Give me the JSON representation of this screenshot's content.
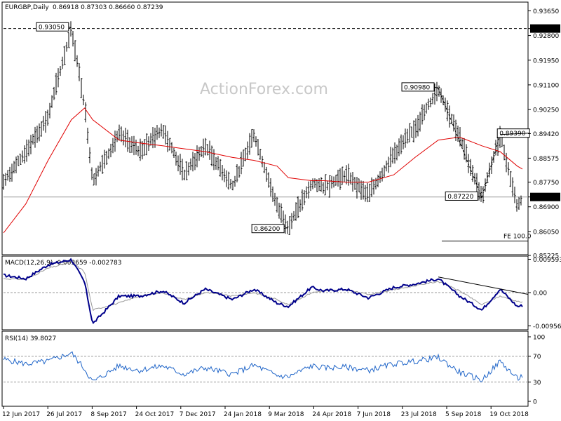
{
  "chart_data": [
    {
      "type": "candlestick",
      "title": "EURGBP,Daily",
      "ohlc_values": "0.86918 0.87303 0.86660 0.87239",
      "watermark": "ActionForex.com",
      "ylim": [
        0.8525,
        0.9395
      ],
      "y_ticks": [
        "0.93650",
        "0.93040",
        "0.92800",
        "0.91950",
        "0.91100",
        "0.90250",
        "0.89420",
        "0.88575",
        "0.87750",
        "0.87239",
        "0.86900",
        "0.86050",
        "0.85225"
      ],
      "y_tick_values": [
        0.9365,
        0.9304,
        0.928,
        0.9195,
        0.911,
        0.9025,
        0.8942,
        0.88575,
        0.8775,
        0.87239,
        0.869,
        0.8605,
        0.85225
      ],
      "highlight_prices": {
        "current": "0.87239",
        "level": "0.93040"
      },
      "current_price": 0.87239,
      "dashed_level": 0.9304,
      "x_ticks": [
        "12 Jun 2017",
        "26 Jul 2017",
        "8 Sep 2017",
        "24 Oct 2017",
        "7 Dec 2017",
        "24 Jan 2018",
        "9 Mar 2018",
        "24 Apr 2018",
        "7 Jun 2018",
        "23 Jul 2018",
        "5 Sep 2018",
        "19 Oct 2018"
      ],
      "pivot_labels": [
        {
          "text": "0.93050",
          "date": "2017-08-18",
          "value": 0.9305
        },
        {
          "text": "0.86200",
          "date": "2018-03-20",
          "value": 0.862
        },
        {
          "text": "0.90980",
          "date": "2018-08-15",
          "value": 0.9098
        },
        {
          "text": "0.89390",
          "date": "2018-10-15",
          "value": 0.8939
        },
        {
          "text": "0.87220",
          "date": "2018-09-27",
          "value": 0.8722
        }
      ],
      "fe_label": "FE 100.0",
      "fe_level": 0.8572,
      "series": [
        {
          "name": "EURGBP",
          "kind": "price",
          "points": [
            [
              0.8775,
              "2017-06-12"
            ],
            [
              0.888,
              "2017-07-04"
            ],
            [
              0.9,
              "2017-07-26"
            ],
            [
              0.9305,
              "2017-08-18"
            ],
            [
              0.904,
              "2017-08-31"
            ],
            [
              0.878,
              "2017-09-08"
            ],
            [
              0.894,
              "2017-10-04"
            ],
            [
              0.888,
              "2017-10-24"
            ],
            [
              0.896,
              "2017-11-16"
            ],
            [
              0.88,
              "2017-12-07"
            ],
            [
              0.89,
              "2017-12-28"
            ],
            [
              0.876,
              "2018-01-24"
            ],
            [
              0.894,
              "2018-02-14"
            ],
            [
              0.869,
              "2018-03-09"
            ],
            [
              0.862,
              "2018-03-20"
            ],
            [
              0.877,
              "2018-04-12"
            ],
            [
              0.876,
              "2018-04-24"
            ],
            [
              0.88,
              "2018-05-16"
            ],
            [
              0.873,
              "2018-06-07"
            ],
            [
              0.887,
              "2018-07-02"
            ],
            [
              0.896,
              "2018-07-23"
            ],
            [
              0.9098,
              "2018-08-15"
            ],
            [
              0.893,
              "2018-09-05"
            ],
            [
              0.8722,
              "2018-09-27"
            ],
            [
              0.8939,
              "2018-10-15"
            ],
            [
              0.869,
              "2018-11-01"
            ],
            [
              0.8724,
              "2018-11-06"
            ]
          ]
        },
        {
          "name": "MA",
          "kind": "moving-average",
          "color": "#e00000",
          "points": [
            [
              0.86,
              "2017-06-12"
            ],
            [
              0.87,
              "2017-07-04"
            ],
            [
              0.885,
              "2017-07-26"
            ],
            [
              0.899,
              "2017-08-18"
            ],
            [
              0.903,
              "2017-08-31"
            ],
            [
              0.899,
              "2017-09-08"
            ],
            [
              0.892,
              "2017-10-04"
            ],
            [
              0.891,
              "2017-10-24"
            ],
            [
              0.89,
              "2017-11-16"
            ],
            [
              0.889,
              "2017-12-07"
            ],
            [
              0.888,
              "2017-12-28"
            ],
            [
              0.886,
              "2018-01-24"
            ],
            [
              0.885,
              "2018-02-14"
            ],
            [
              0.883,
              "2018-03-09"
            ],
            [
              0.879,
              "2018-03-20"
            ],
            [
              0.878,
              "2018-04-12"
            ],
            [
              0.878,
              "2018-04-24"
            ],
            [
              0.8775,
              "2018-05-16"
            ],
            [
              0.8775,
              "2018-06-07"
            ],
            [
              0.88,
              "2018-07-02"
            ],
            [
              0.886,
              "2018-07-23"
            ],
            [
              0.892,
              "2018-08-15"
            ],
            [
              0.893,
              "2018-09-05"
            ],
            [
              0.89,
              "2018-09-27"
            ],
            [
              0.888,
              "2018-10-15"
            ],
            [
              0.883,
              "2018-11-01"
            ],
            [
              0.882,
              "2018-11-06"
            ]
          ]
        }
      ]
    },
    {
      "type": "line",
      "title": "MACD(12,26,9) -0.003659 -0.002783",
      "ylim": [
        -0.0107,
        0.0105
      ],
      "y_ticks": [
        "0.009593",
        "0.00",
        "-0.009562"
      ],
      "y_tick_values": [
        0.009593,
        0,
        -0.009562
      ],
      "series": [
        {
          "name": "MACD",
          "color": "#00008b",
          "points": [
            [
              0.005,
              "2017-06-12"
            ],
            [
              0.004,
              "2017-07-04"
            ],
            [
              0.008,
              "2017-07-26"
            ],
            [
              0.0095,
              "2017-08-18"
            ],
            [
              0.003,
              "2017-08-31"
            ],
            [
              -0.009,
              "2017-09-08"
            ],
            [
              -0.001,
              "2017-10-04"
            ],
            [
              -0.001,
              "2017-10-24"
            ],
            [
              0.0005,
              "2017-11-16"
            ],
            [
              -0.003,
              "2017-12-07"
            ],
            [
              0.001,
              "2017-12-28"
            ],
            [
              -0.002,
              "2018-01-24"
            ],
            [
              0.001,
              "2018-02-14"
            ],
            [
              -0.003,
              "2018-03-09"
            ],
            [
              -0.004,
              "2018-03-20"
            ],
            [
              0.0015,
              "2018-04-12"
            ],
            [
              0.0005,
              "2018-04-24"
            ],
            [
              0.001,
              "2018-05-16"
            ],
            [
              -0.0015,
              "2018-06-07"
            ],
            [
              0.0015,
              "2018-07-02"
            ],
            [
              0.0025,
              "2018-07-23"
            ],
            [
              0.004,
              "2018-08-15"
            ],
            [
              -0.001,
              "2018-09-05"
            ],
            [
              -0.005,
              "2018-09-27"
            ],
            [
              0.001,
              "2018-10-15"
            ],
            [
              -0.004,
              "2018-11-01"
            ],
            [
              -0.0037,
              "2018-11-06"
            ]
          ]
        },
        {
          "name": "Signal",
          "color": "#999999",
          "points": [
            [
              0.004,
              "2017-06-12"
            ],
            [
              0.0038,
              "2017-07-04"
            ],
            [
              0.007,
              "2017-07-26"
            ],
            [
              0.0088,
              "2017-08-18"
            ],
            [
              0.006,
              "2017-08-31"
            ],
            [
              -0.005,
              "2017-09-08"
            ],
            [
              -0.003,
              "2017-10-04"
            ],
            [
              -0.001,
              "2017-10-24"
            ],
            [
              0.0,
              "2017-11-16"
            ],
            [
              -0.002,
              "2017-12-07"
            ],
            [
              0.0,
              "2017-12-28"
            ],
            [
              -0.001,
              "2018-01-24"
            ],
            [
              0.0,
              "2018-02-14"
            ],
            [
              -0.002,
              "2018-03-09"
            ],
            [
              -0.0035,
              "2018-03-20"
            ],
            [
              0.0,
              "2018-04-12"
            ],
            [
              0.0005,
              "2018-04-24"
            ],
            [
              0.0008,
              "2018-05-16"
            ],
            [
              -0.0005,
              "2018-06-07"
            ],
            [
              0.0008,
              "2018-07-02"
            ],
            [
              0.002,
              "2018-07-23"
            ],
            [
              0.0032,
              "2018-08-15"
            ],
            [
              0.0005,
              "2018-09-05"
            ],
            [
              -0.0035,
              "2018-09-27"
            ],
            [
              -0.001,
              "2018-10-15"
            ],
            [
              -0.0025,
              "2018-11-01"
            ],
            [
              -0.0028,
              "2018-11-06"
            ]
          ]
        }
      ],
      "trendline": [
        [
          0.0045,
          "2018-08-15"
        ],
        [
          0.0005,
          "2018-11-06"
        ]
      ]
    },
    {
      "type": "line",
      "title": "RSI(14) 39.8027",
      "ylim": [
        0,
        100
      ],
      "y_ticks": [
        "100",
        "70",
        "30",
        "0"
      ],
      "y_tick_values": [
        100,
        70,
        30,
        0
      ],
      "series": [
        {
          "name": "RSI",
          "color": "#1e64c8",
          "points": [
            [
              65,
              "2017-06-12"
            ],
            [
              58,
              "2017-07-04"
            ],
            [
              62,
              "2017-07-26"
            ],
            [
              75,
              "2017-08-18"
            ],
            [
              50,
              "2017-08-31"
            ],
            [
              30,
              "2017-09-08"
            ],
            [
              55,
              "2017-10-04"
            ],
            [
              48,
              "2017-10-24"
            ],
            [
              55,
              "2017-11-16"
            ],
            [
              42,
              "2017-12-07"
            ],
            [
              52,
              "2017-12-28"
            ],
            [
              42,
              "2018-01-24"
            ],
            [
              56,
              "2018-02-14"
            ],
            [
              40,
              "2018-03-09"
            ],
            [
              38,
              "2018-03-20"
            ],
            [
              55,
              "2018-04-12"
            ],
            [
              52,
              "2018-04-24"
            ],
            [
              53,
              "2018-05-16"
            ],
            [
              48,
              "2018-06-07"
            ],
            [
              58,
              "2018-07-02"
            ],
            [
              62,
              "2018-07-23"
            ],
            [
              68,
              "2018-08-15"
            ],
            [
              45,
              "2018-09-05"
            ],
            [
              33,
              "2018-09-27"
            ],
            [
              62,
              "2018-10-15"
            ],
            [
              35,
              "2018-11-01"
            ],
            [
              39.8,
              "2018-11-06"
            ]
          ]
        }
      ]
    }
  ]
}
